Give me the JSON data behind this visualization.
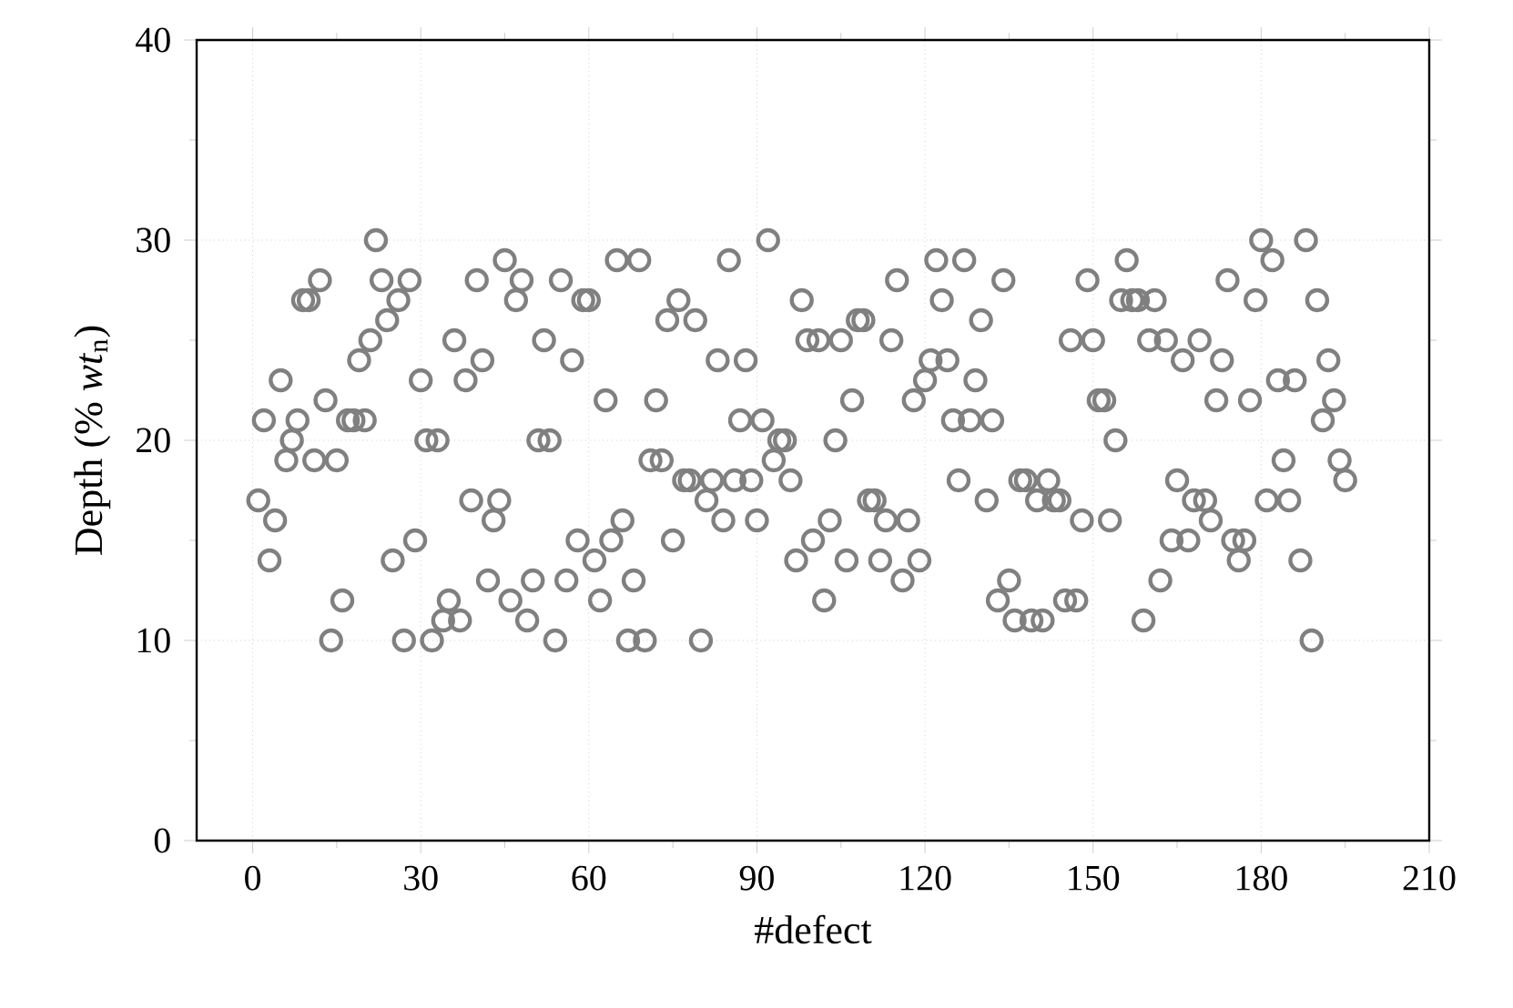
{
  "chart_data": {
    "type": "scatter",
    "xlabel": "#defect",
    "ylabel": "Depth (% *wt*$_{n}$)",
    "x": [
      1,
      2,
      3,
      4,
      5,
      6,
      7,
      8,
      9,
      10,
      11,
      12,
      13,
      14,
      15,
      16,
      17,
      18,
      19,
      20,
      21,
      22,
      23,
      24,
      25,
      26,
      27,
      28,
      29,
      30,
      31,
      32,
      33,
      34,
      35,
      36,
      37,
      38,
      39,
      40,
      41,
      42,
      43,
      44,
      45,
      46,
      47,
      48,
      49,
      50,
      51,
      52,
      53,
      54,
      55,
      56,
      57,
      58,
      59,
      60,
      61,
      62,
      63,
      64,
      65,
      66,
      67,
      68,
      69,
      70,
      71,
      72,
      73,
      74,
      75,
      76,
      77,
      78,
      79,
      80,
      81,
      82,
      83,
      84,
      85,
      86,
      87,
      88,
      89,
      90,
      91,
      92,
      93,
      94,
      95,
      96,
      97,
      98,
      99,
      100,
      101,
      102,
      103,
      104,
      105,
      106,
      107,
      108,
      109,
      110,
      111,
      112,
      113,
      114,
      115,
      116,
      117,
      118,
      119,
      120,
      121,
      122,
      123,
      124,
      125,
      126,
      127,
      128,
      129,
      130,
      131,
      132,
      133,
      134,
      135,
      136,
      137,
      138,
      139,
      140,
      141,
      142,
      143,
      144,
      145,
      146,
      147,
      148,
      149,
      150,
      151,
      152,
      153,
      154,
      155,
      156,
      157,
      158,
      159,
      160,
      161,
      162,
      163,
      164,
      165,
      166,
      167,
      168,
      169,
      170,
      171,
      172,
      173,
      174,
      175,
      176,
      177,
      178,
      179,
      180,
      181,
      182,
      183,
      184,
      185,
      186,
      187,
      188,
      189,
      190,
      191,
      192,
      193,
      194,
      195
    ],
    "values": [
      17,
      21,
      14,
      16,
      23,
      19,
      20,
      21,
      27,
      27,
      19,
      28,
      22,
      10,
      19,
      12,
      21,
      21,
      24,
      21,
      25,
      30,
      28,
      26,
      14,
      27,
      10,
      28,
      15,
      23,
      20,
      10,
      20,
      11,
      12,
      25,
      11,
      23,
      17,
      28,
      24,
      13,
      16,
      17,
      29,
      12,
      27,
      28,
      11,
      13,
      20,
      25,
      20,
      10,
      28,
      13,
      24,
      15,
      27,
      27,
      14,
      12,
      22,
      15,
      29,
      16,
      10,
      13,
      29,
      10,
      19,
      22,
      19,
      26,
      15,
      27,
      18,
      18,
      26,
      10,
      17,
      18,
      24,
      16,
      29,
      18,
      21,
      24,
      18,
      16,
      21,
      30,
      19,
      20,
      20,
      18,
      14,
      27,
      25,
      15,
      25,
      12,
      16,
      20,
      25,
      14,
      22,
      26,
      26,
      17,
      17,
      14,
      16,
      25,
      28,
      13,
      16,
      22,
      14,
      23,
      24,
      29,
      27,
      24,
      21,
      18,
      29,
      21,
      23,
      26,
      17,
      21,
      12,
      28,
      13,
      11,
      18,
      18,
      11,
      17,
      11,
      18,
      17,
      17,
      12,
      25,
      12,
      16,
      28,
      25,
      22,
      22,
      16,
      20,
      27,
      29,
      27,
      27,
      11,
      25,
      27,
      13,
      25,
      15,
      18,
      24,
      15,
      17,
      25,
      17,
      16,
      22,
      24,
      28,
      15,
      14,
      15,
      22,
      27,
      30,
      17,
      29,
      23,
      19,
      17,
      23,
      14,
      30,
      10,
      27,
      21,
      24,
      22,
      19,
      18
    ],
    "color": "#808080",
    "marker": "circle",
    "grid": true,
    "xlim": [
      -10,
      210
    ],
    "xticks": [
      0,
      30,
      60,
      90,
      120,
      150,
      180,
      210
    ],
    "ylim": [
      0,
      40
    ],
    "yticks": [
      0,
      10,
      20,
      30,
      40
    ]
  }
}
